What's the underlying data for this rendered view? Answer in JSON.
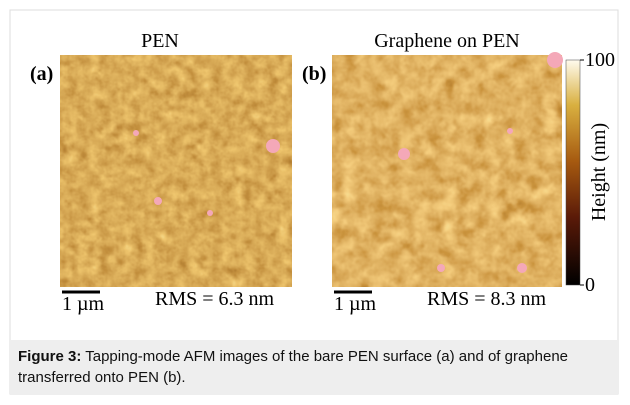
{
  "panels": [
    {
      "label": "(a)",
      "title": "PEN",
      "scale_bar": "1 µm",
      "rms": "RMS = 6.3 nm"
    },
    {
      "label": "(b)",
      "title": "Graphene on PEN",
      "scale_bar": "1 µm",
      "rms": "RMS = 8.3 nm"
    }
  ],
  "colorbar": {
    "label": "Height (nm)",
    "lim": [
      0,
      100
    ],
    "ticks": [
      0,
      100
    ]
  },
  "caption": {
    "label": "Figure 3:",
    "text": "Tapping-mode AFM images of the bare PEN surface (a) and of graphene transferred onto PEN (b)."
  }
}
